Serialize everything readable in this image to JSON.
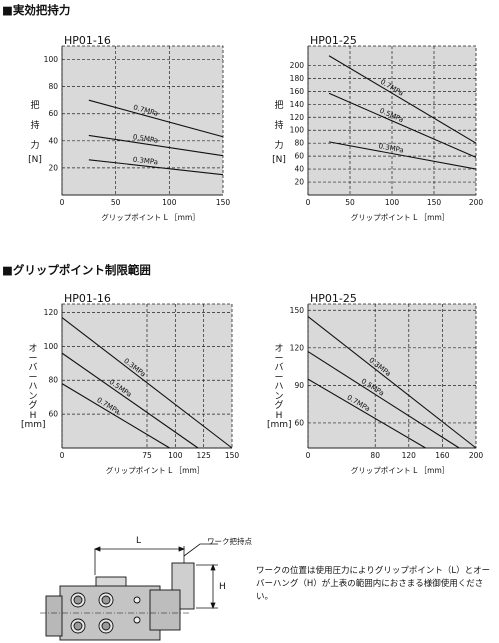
{
  "sections": {
    "holding_force_title": "■実効把持力",
    "grip_range_title": "■グリップポイント制限範囲"
  },
  "holding_force_ylabel": [
    "把",
    "持",
    "力",
    "[N]"
  ],
  "overhang_ylabel": [
    "オ",
    "ー",
    "バ",
    "ー",
    "ハ",
    "ン",
    "グ",
    "H",
    "[mm]"
  ],
  "chart_data": [
    {
      "type": "line",
      "title": "HP01-16",
      "xlabel": "グリップポイント L ［mm］",
      "ylabel": "把持力 [N]",
      "xlim": [
        0,
        150
      ],
      "ylim": [
        0,
        110
      ],
      "xticks": [
        0,
        50,
        100,
        150
      ],
      "yticks": [
        20,
        40,
        60,
        80,
        100
      ],
      "grid": true,
      "series": [
        {
          "name": "0.7MPa",
          "x": [
            25,
            150
          ],
          "y": [
            70,
            43
          ]
        },
        {
          "name": "0.5MPa",
          "x": [
            25,
            150
          ],
          "y": [
            44,
            29
          ]
        },
        {
          "name": "0.3MPa",
          "x": [
            25,
            150
          ],
          "y": [
            26,
            15
          ]
        }
      ]
    },
    {
      "type": "line",
      "title": "HP01-25",
      "xlabel": "グリップポイント L ［mm］",
      "ylabel": "把持力 [N]",
      "xlim": [
        0,
        200
      ],
      "ylim": [
        0,
        230
      ],
      "xticks": [
        0,
        50,
        100,
        150,
        200
      ],
      "yticks": [
        20,
        40,
        60,
        80,
        100,
        120,
        140,
        160,
        180,
        200
      ],
      "grid": true,
      "series": [
        {
          "name": "0.7MPa",
          "x": [
            25,
            200
          ],
          "y": [
            215,
            80
          ]
        },
        {
          "name": "0.5MPa",
          "x": [
            25,
            200
          ],
          "y": [
            157,
            58
          ]
        },
        {
          "name": "0.3MPa",
          "x": [
            25,
            200
          ],
          "y": [
            82,
            40
          ]
        }
      ]
    },
    {
      "type": "line",
      "title": "HP01-16",
      "xlabel": "グリップポイント L ［mm］",
      "ylabel": "オーバーハング H [mm]",
      "xlim": [
        0,
        150
      ],
      "ylim": [
        40,
        125
      ],
      "xticks": [
        0,
        75,
        100,
        125,
        150
      ],
      "yticks": [
        60,
        80,
        100,
        120
      ],
      "grid": true,
      "series": [
        {
          "name": "0.3MPa",
          "x": [
            0,
            150
          ],
          "y": [
            117,
            40
          ]
        },
        {
          "name": "0.5MPa",
          "x": [
            0,
            120
          ],
          "y": [
            96,
            40
          ]
        },
        {
          "name": "0.7MPa",
          "x": [
            0,
            95
          ],
          "y": [
            78,
            40
          ]
        }
      ]
    },
    {
      "type": "line",
      "title": "HP01-25",
      "xlabel": "グリップポイント L ［mm］",
      "ylabel": "オーバーハング H [mm]",
      "xlim": [
        0,
        200
      ],
      "ylim": [
        40,
        155
      ],
      "xticks": [
        0,
        80,
        120,
        160,
        200
      ],
      "yticks": [
        60,
        90,
        120,
        150
      ],
      "grid": true,
      "series": [
        {
          "name": "0.3MPa",
          "x": [
            0,
            200
          ],
          "y": [
            145,
            40
          ]
        },
        {
          "name": "0.5MPa",
          "x": [
            0,
            180
          ],
          "y": [
            117,
            40
          ]
        },
        {
          "name": "0.7MPa",
          "x": [
            0,
            140
          ],
          "y": [
            95,
            40
          ]
        }
      ]
    }
  ],
  "drawing": {
    "L_label": "L",
    "H_label": "H",
    "work_point_label": "ワーク把持点"
  },
  "note": "ワークの位置は使用圧力によりグリップポイント（L）とオーバーハング（H）が上表の範囲内におさまる様御使用ください。"
}
